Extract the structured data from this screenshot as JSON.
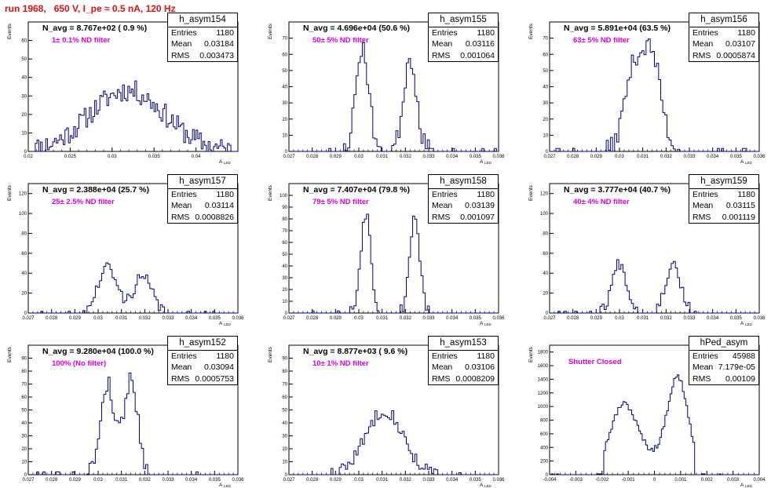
{
  "page_title": "run 1968,   650 V, I_pe ≈ 0.5 nA, 120 Hz",
  "y_axis_title": "Events",
  "x_axis_title": "A",
  "x_axis_title_sub": "LED",
  "colors": {
    "histogram": "#000080",
    "title": "#e01010",
    "label": "#e000e0"
  },
  "chart_data": [
    {
      "type": "bar",
      "name": "h_asym154",
      "navg": "N_avg = 8.767e+02 ( 0.9 %)",
      "label": "1± 0.1% ND filter",
      "stats": {
        "entries": "1180",
        "mean": "0.03184",
        "rms": "0.003473"
      },
      "xlim": [
        0.02,
        0.045
      ],
      "xticks": [
        "0.02",
        "0.025",
        "0.03",
        "0.035",
        "0.04"
      ],
      "xtick_values": [
        0.02,
        0.025,
        0.03,
        0.035,
        0.04
      ],
      "ylim": [
        0,
        70
      ],
      "yticks": [
        0,
        10,
        20,
        30,
        40,
        50,
        60
      ],
      "peaks": [
        [
          0.0318,
          0.0045,
          33
        ]
      ],
      "bins": 120,
      "noise": 6,
      "seed": 11
    },
    {
      "type": "bar",
      "name": "h_asym155",
      "navg": "N_avg = 4.696e+04 (50.6 %)",
      "label": "50± 5% ND filter",
      "stats": {
        "entries": "1180",
        "mean": "0.03116",
        "rms": "0.001064"
      },
      "xlim": [
        0.027,
        0.036
      ],
      "xticks": [
        "0.027",
        "0.028",
        "0.029",
        "0.03",
        "0.031",
        "0.032",
        "0.033",
        "0.034",
        "0.035",
        "0.036"
      ],
      "xtick_values": [
        0.027,
        0.028,
        0.029,
        0.03,
        0.031,
        0.032,
        0.033,
        0.034,
        0.035,
        0.036
      ],
      "ylim": [
        0,
        80
      ],
      "yticks": [
        0,
        10,
        20,
        30,
        40,
        50,
        60,
        70
      ],
      "peaks": [
        [
          0.03015,
          0.00028,
          64
        ],
        [
          0.0322,
          0.00028,
          58
        ]
      ],
      "bins": 100,
      "noise": 6,
      "seed": 23
    },
    {
      "type": "bar",
      "name": "h_asym156",
      "navg": "N_avg = 5.891e+04 (63.5 %)",
      "label": "63± 5% ND filter",
      "stats": {
        "entries": "1180",
        "mean": "0.03107",
        "rms": "0.0005874"
      },
      "xlim": [
        0.027,
        0.036
      ],
      "xticks": [
        "0.027",
        "0.028",
        "0.029",
        "0.03",
        "0.031",
        "0.032",
        "0.033",
        "0.034",
        "0.035",
        "0.036"
      ],
      "xtick_values": [
        0.027,
        0.028,
        0.029,
        0.03,
        0.031,
        0.032,
        0.033,
        0.034,
        0.035,
        0.036
      ],
      "ylim": [
        0,
        80
      ],
      "yticks": [
        0,
        10,
        20,
        30,
        40,
        50,
        60,
        70
      ],
      "peaks": [
        [
          0.0306,
          0.0004,
          48
        ],
        [
          0.0314,
          0.0004,
          56
        ]
      ],
      "bins": 100,
      "noise": 6,
      "seed": 37
    },
    {
      "type": "bar",
      "name": "h_asym157",
      "navg": "N_avg = 2.388e+04 (25.7 %)",
      "label": "25± 2.5% ND filter",
      "stats": {
        "entries": "1180",
        "mean": "0.03114",
        "rms": "0.0008826"
      },
      "xlim": [
        0.027,
        0.036
      ],
      "xticks": [
        "0.027",
        "0.028",
        "0.029",
        "0.03",
        "0.031",
        "0.032",
        "0.033",
        "0.034",
        "0.035",
        "0.036"
      ],
      "xtick_values": [
        0.027,
        0.028,
        0.029,
        0.03,
        0.031,
        0.032,
        0.033,
        0.034,
        0.035,
        0.036
      ],
      "ylim": [
        0,
        130
      ],
      "yticks": [
        0,
        20,
        40,
        60,
        80,
        100,
        120
      ],
      "peaks": [
        [
          0.0304,
          0.0004,
          46
        ],
        [
          0.0319,
          0.0004,
          36
        ]
      ],
      "bins": 100,
      "noise": 6,
      "seed": 41
    },
    {
      "type": "bar",
      "name": "h_asym158",
      "navg": "N_avg = 7.407e+04 (79.8 %)",
      "label": "79± 5% ND filter",
      "stats": {
        "entries": "1180",
        "mean": "0.03139",
        "rms": "0.001097"
      },
      "xlim": [
        0.027,
        0.036
      ],
      "xticks": [
        "0.027",
        "0.028",
        "0.029",
        "0.03",
        "0.031",
        "0.032",
        "0.033",
        "0.034",
        "0.035",
        "0.036"
      ],
      "xtick_values": [
        0.027,
        0.028,
        0.029,
        0.03,
        0.031,
        0.032,
        0.033,
        0.034,
        0.035,
        0.036
      ],
      "ylim": [
        0,
        110
      ],
      "yticks": [
        0,
        10,
        20,
        30,
        40,
        50,
        60,
        70,
        80,
        90,
        100
      ],
      "peaks": [
        [
          0.0303,
          0.00022,
          86
        ],
        [
          0.0324,
          0.00022,
          82
        ]
      ],
      "bins": 100,
      "noise": 6,
      "seed": 53
    },
    {
      "type": "bar",
      "name": "h_asym159",
      "navg": "N_avg = 3.777e+04 (40.7 %)",
      "label": "40± 4% ND filter",
      "stats": {
        "entries": "1180",
        "mean": "0.03115",
        "rms": "0.001119"
      },
      "xlim": [
        0.027,
        0.036
      ],
      "xticks": [
        "0.027",
        "0.028",
        "0.029",
        "0.03",
        "0.031",
        "0.032",
        "0.033",
        "0.034",
        "0.035",
        "0.036"
      ],
      "xtick_values": [
        0.027,
        0.028,
        0.029,
        0.03,
        0.031,
        0.032,
        0.033,
        0.034,
        0.035,
        0.036
      ],
      "ylim": [
        0,
        130
      ],
      "yticks": [
        0,
        20,
        40,
        60,
        80,
        100,
        120
      ],
      "peaks": [
        [
          0.03,
          0.00032,
          50
        ],
        [
          0.0323,
          0.00032,
          50
        ]
      ],
      "bins": 100,
      "noise": 6,
      "seed": 67
    },
    {
      "type": "bar",
      "name": "h_asym152",
      "navg": "N_avg = 9.280e+04 (100.0 %)",
      "label": "100% (No filter)",
      "stats": {
        "entries": "1180",
        "mean": "0.03094",
        "rms": "0.0005753"
      },
      "xlim": [
        0.027,
        0.036
      ],
      "xticks": [
        "0.027",
        "0.028",
        "0.029",
        "0.03",
        "0.031",
        "0.032",
        "0.033",
        "0.034",
        "0.035",
        "0.036"
      ],
      "xtick_values": [
        0.027,
        0.028,
        0.029,
        0.03,
        0.031,
        0.032,
        0.033,
        0.034,
        0.035,
        0.036
      ],
      "ylim": [
        0,
        100
      ],
      "yticks": [
        0,
        10,
        20,
        30,
        40,
        50,
        60,
        70,
        80,
        90
      ],
      "peaks": [
        [
          0.0304,
          0.0003,
          70
        ],
        [
          0.0314,
          0.0003,
          74
        ]
      ],
      "bins": 100,
      "noise": 7,
      "seed": 79
    },
    {
      "type": "bar",
      "name": "h_asym153",
      "navg": "N_avg = 8.877e+03 ( 9.6 %)",
      "label": "10± 1% ND filter",
      "stats": {
        "entries": "1180",
        "mean": "0.03106",
        "rms": "0.0008209"
      },
      "xlim": [
        0.027,
        0.036
      ],
      "xticks": [
        "0.027",
        "0.028",
        "0.029",
        "0.03",
        "0.031",
        "0.032",
        "0.033",
        "0.034",
        "0.035",
        "0.036"
      ],
      "xtick_values": [
        0.027,
        0.028,
        0.029,
        0.03,
        0.031,
        0.032,
        0.033,
        0.034,
        0.035,
        0.036
      ],
      "ylim": [
        0,
        100
      ],
      "yticks": [
        0,
        10,
        20,
        30,
        40,
        50,
        60,
        70,
        80,
        90
      ],
      "peaks": [
        [
          0.0311,
          0.0008,
          50
        ]
      ],
      "bins": 100,
      "noise": 5,
      "seed": 83
    },
    {
      "type": "bar",
      "name": "hPed_asym",
      "navg": "",
      "label": "Shutter Closed",
      "stats": {
        "entries": "45988",
        "mean": "7.179e-05",
        "rms": "0.00109"
      },
      "xlim": [
        -0.004,
        0.004
      ],
      "xticks": [
        "-0.004",
        "-0.003",
        "-0.002",
        "-0.001",
        "0",
        "0.001",
        "0.002",
        "0.003",
        "0.004"
      ],
      "xtick_values": [
        -0.004,
        -0.003,
        -0.002,
        -0.001,
        0,
        0.001,
        0.002,
        0.003,
        0.004
      ],
      "ylim": [
        0,
        1900
      ],
      "yticks": [
        0,
        200,
        400,
        600,
        800,
        1000,
        1200,
        1400,
        1600,
        1800
      ],
      "peaks": [
        [
          -0.0012,
          0.0005,
          870
        ],
        [
          0.0009,
          0.0004,
          1350
        ],
        [
          -0.0004,
          0.0009,
          250
        ]
      ],
      "cutoff": [
        -0.0019,
        0.00155
      ],
      "bins": 120,
      "noise": 40,
      "seed": 97
    }
  ]
}
